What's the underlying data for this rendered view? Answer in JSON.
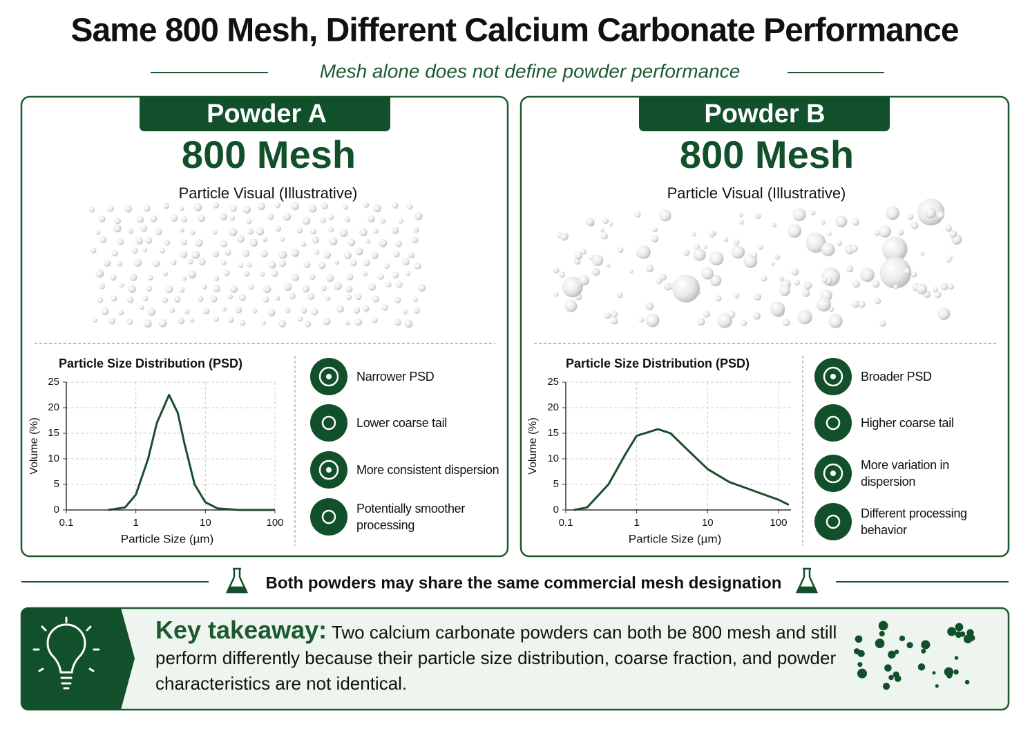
{
  "title": "Same 800 Mesh, Different Calcium Carbonate Performance",
  "subtitle": "Mesh alone does not define powder performance",
  "panels": [
    {
      "name": "Powder A",
      "mesh": "800 Mesh",
      "visual_label": "Particle Visual (Illustrative)",
      "features": [
        "Narrower PSD",
        "Lower coarse tail",
        "More consistent dispersion",
        "Potentially smoother processing"
      ]
    },
    {
      "name": "Powder B",
      "mesh": "800 Mesh",
      "visual_label": "Particle Visual (Illustrative)",
      "features": [
        "Broader PSD",
        "Higher coarse tail",
        "More variation in dispersion",
        "Different processing behavior"
      ]
    }
  ],
  "chart_data": [
    {
      "type": "line",
      "title": "Particle Size Distribution (PSD)",
      "x_label": "Particle Size (µm)",
      "y_label": "Volume (%)",
      "x_log": true,
      "grid": true,
      "color": "#1b4d2b",
      "x": [
        0.4,
        0.7,
        1,
        1.5,
        2,
        3,
        4,
        5,
        7,
        10,
        15,
        30,
        100
      ],
      "values": [
        0,
        0.5,
        3,
        10,
        17,
        22.5,
        19,
        13,
        5,
        1.5,
        0.3,
        0,
        0
      ],
      "xlim": [
        0.1,
        100
      ],
      "ylim": [
        0,
        25
      ],
      "xticks": [
        0.1,
        1,
        10,
        100
      ],
      "yticks": [
        0,
        5,
        10,
        15,
        20,
        25
      ]
    },
    {
      "type": "line",
      "title": "Particle Size Distribution (PSD)",
      "x_label": "Particle Size (µm)",
      "y_label": "Volume (%)",
      "x_log": true,
      "grid": true,
      "color": "#1b4d2b",
      "x": [
        0.13,
        0.2,
        0.4,
        0.7,
        1,
        2,
        3,
        5,
        10,
        20,
        50,
        100,
        140
      ],
      "values": [
        0,
        0.5,
        5,
        11,
        14.5,
        15.8,
        15,
        12,
        8,
        5.5,
        3.5,
        2,
        1
      ],
      "xlim": [
        0.1,
        150
      ],
      "ylim": [
        0,
        25
      ],
      "xticks": [
        0.1,
        1,
        10,
        100
      ],
      "yticks": [
        0,
        5,
        10,
        15,
        20,
        25
      ]
    }
  ],
  "note": "Both powders may share the same commercial mesh designation",
  "takeaway": {
    "label": "Key takeaway:",
    "text": "Two calcium carbonate powders can both be 800 mesh and still perform differently because their particle size distribution, coarse fraction, and powder characteristics are not identical."
  }
}
